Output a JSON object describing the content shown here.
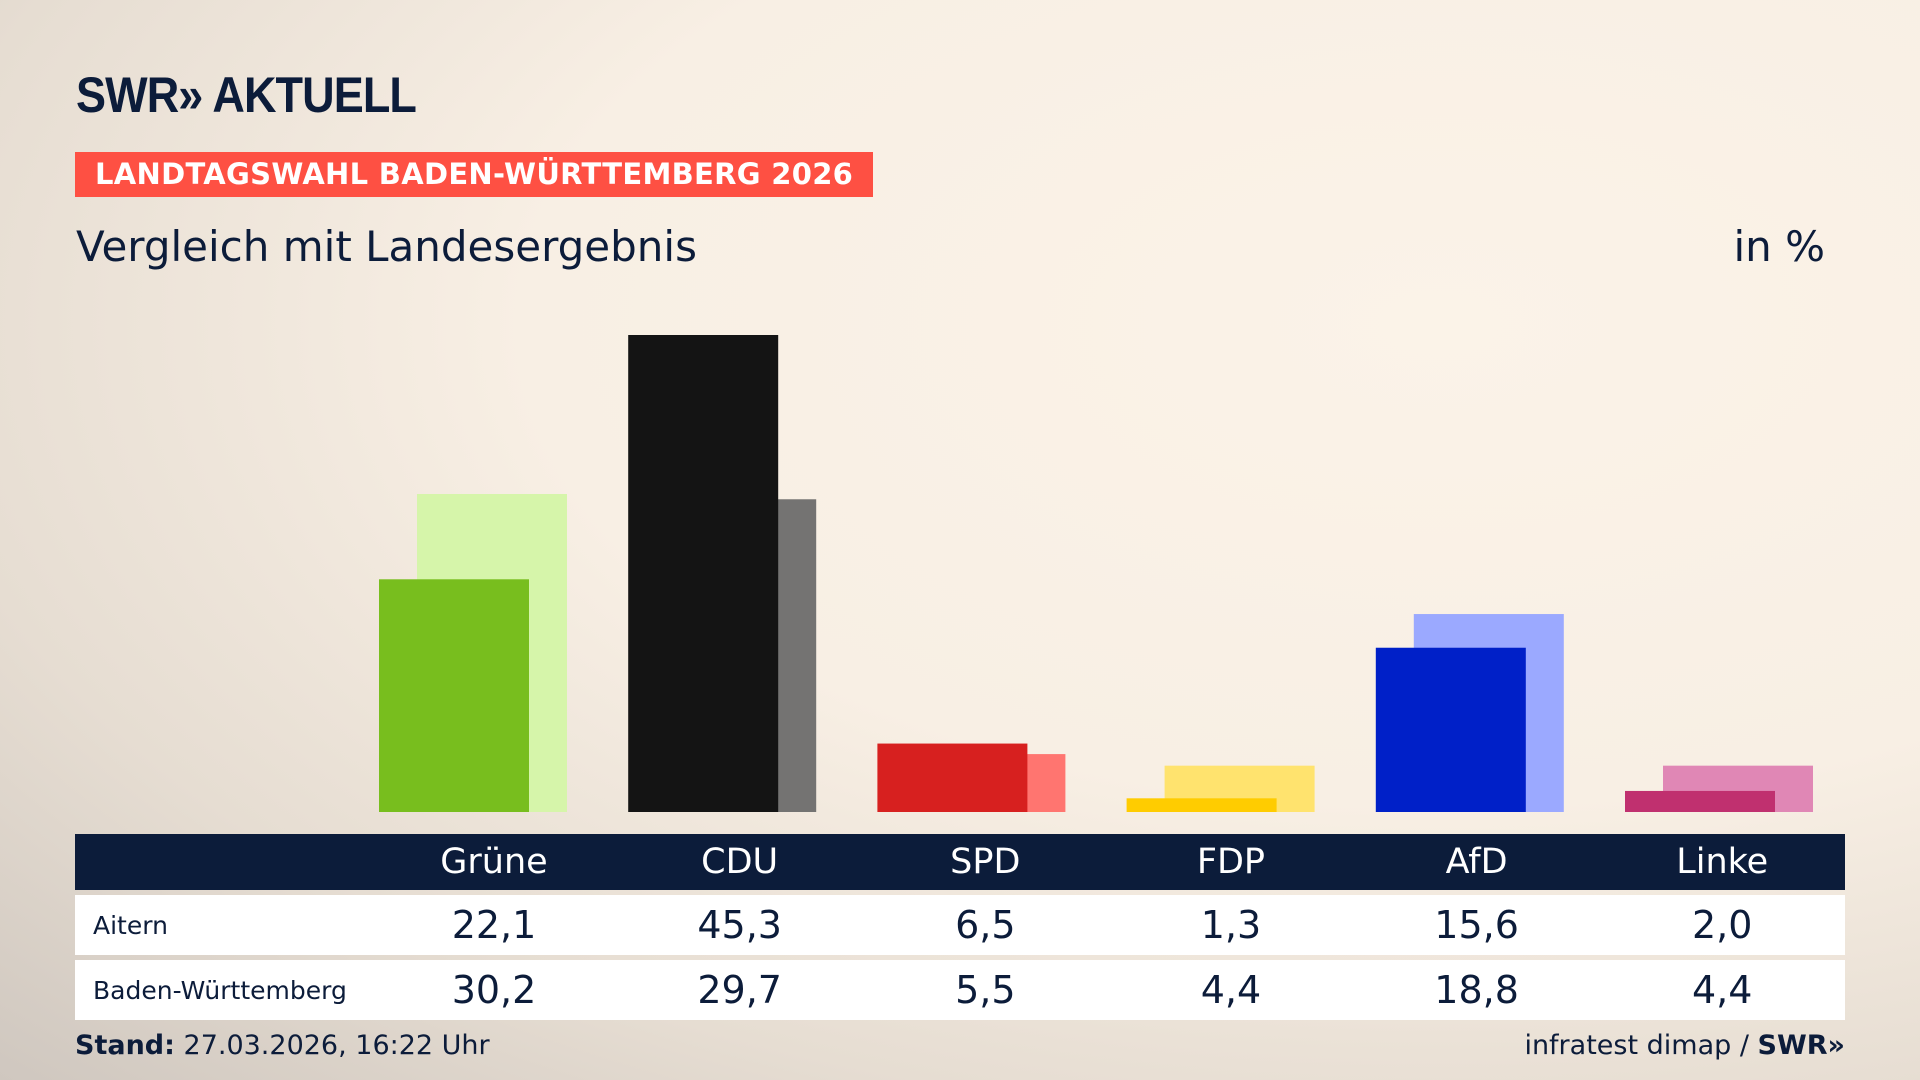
{
  "header": {
    "logo": "SWR» AKTUELL",
    "banner": "LANDTAGSWAHL BADEN-WÜRTTEMBERG 2026",
    "subtitle": "Vergleich mit Landesergebnis",
    "unit": "in %"
  },
  "chart_data": {
    "type": "bar",
    "categories": [
      "Grüne",
      "CDU",
      "SPD",
      "FDP",
      "AfD",
      "Linke"
    ],
    "series": [
      {
        "name": "Aitern",
        "values": [
          22.1,
          45.3,
          6.5,
          1.3,
          15.6,
          2.0
        ],
        "colors": [
          "#78be1e",
          "#141414",
          "#d7201f",
          "#ffcc00",
          "#0020c8",
          "#c0306f"
        ]
      },
      {
        "name": "Baden-Württemberg",
        "values": [
          30.2,
          29.7,
          5.5,
          4.4,
          18.8,
          4.4
        ],
        "colors": [
          "#d6f5aa",
          "#747372",
          "#ff7570",
          "#ffe36e",
          "#9ba9ff",
          "#e087b5"
        ]
      }
    ],
    "display_values": [
      [
        "22,1",
        "45,3",
        "6,5",
        "1,3",
        "15,6",
        "2,0"
      ],
      [
        "30,2",
        "29,7",
        "5,5",
        "4,4",
        "18,8",
        "4,4"
      ]
    ],
    "ylim": [
      0,
      45.3
    ],
    "grid": false
  },
  "footer": {
    "stand_label": "Stand:",
    "stand_value": "27.03.2026, 16:22 Uhr",
    "source": "infratest dimap / ",
    "source_logo": "SWR»"
  }
}
